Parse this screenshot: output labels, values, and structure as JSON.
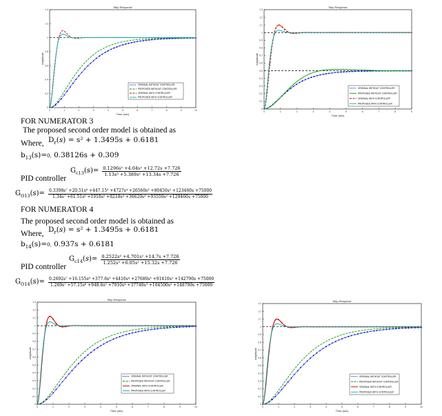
{
  "text": {
    "heading3": "FOR NUMERATOR 3",
    "proposed3": "The proposed second order model is obtained as",
    "where3": "Where,",
    "dr3_lhs": "D",
    "dr3_rhs": "s² + 1.3495s + 0.6181",
    "b13_lhs": "b",
    "b13_rhs": "0.38126s + 0.309",
    "pid3_label": "PID controller",
    "gc13_num": "0.1296s³ +4.04s² +12.72s +7.726",
    "gc13_den": "1.13s³ +5.389s² +13.34s +7.726",
    "go13_num": "0.3398s⁷ +20.51s⁶ +447.15⁵ +4727s⁴ +26560s³ +80450s² +123460s +75000",
    "go13_den": "1.34s⁷ +61.51s⁶ +1018s⁵ +8218s⁴ +36620s³ +93550s² +129460s +75000",
    "heading4": "FOR NUMERATOR 4",
    "proposed4": "The proposed second order model is obtained as",
    "where4": "Where,",
    "dr4_rhs": "s² + 1.3495s + 0.6181",
    "b14_rhs": "0.937s + 0.6181",
    "pid4_label": "PID controller",
    "gc14_num": "0.2522s³ +4.701s² +14.7s +7.726",
    "gc14_den": "1.252s³ +6.05s² +15.32s +7.726",
    "go14_num": "0.2692s⁷ +16.155s⁶ +377.6s⁵ +4416s⁴ +27680s³ +91410s² +142790s +75000",
    "go14_den": "1.269s⁷ +57.15s⁶ +948.6s⁵ +7910s⁴ +37740s³ +104500s² +148790s +75000"
  },
  "colors": {
    "blue": "#0000cc",
    "red": "#cc0000",
    "green": "#009900",
    "cyan": "#00aaaa",
    "black": "#000000"
  },
  "chart_data": [
    {
      "type": "line",
      "title": "Step Response",
      "xlabel": "Time (sec)",
      "ylabel": "Amplitude",
      "xlim": [
        0,
        10
      ],
      "ylim": [
        0,
        1.4
      ],
      "grid": false,
      "legend": "bottom-right",
      "series": [
        {
          "name": "ORIGINAL WITHOUT CONTROLLER",
          "color": "#0000cc",
          "style": "dotted-marker",
          "model": "overdamped",
          "final": 1.0,
          "tau": 1.3
        },
        {
          "name": "PROPOSED WITHOUT CONTROLLER",
          "color": "#009900",
          "style": "dashed",
          "model": "overdamped",
          "final": 1.0,
          "tau": 1.1
        },
        {
          "name": "ORIGINAL WITH CONTROLLER",
          "color": "#cc0000",
          "style": "dashed",
          "model": "underdamped",
          "final": 1.0,
          "overshoot": 0.1,
          "tpeak": 0.9
        },
        {
          "name": "PROPOSED WITH CONTROLLER",
          "color": "#00aaaa",
          "style": "solid",
          "model": "underdamped",
          "final": 1.0,
          "overshoot": 0.05,
          "tpeak": 0.9
        }
      ]
    },
    {
      "type": "line",
      "title": "Step Response",
      "xlabel": "Time (sec)",
      "ylabel": "Amplitude",
      "xlim": [
        0,
        9
      ],
      "ylim": [
        0,
        1.3
      ],
      "grid": false,
      "legend": "bottom-right",
      "series": [
        {
          "name": "ORIGINAL WITHOUT CONTROLLER",
          "color": "#0000cc",
          "style": "dotted-marker",
          "model": "overdamped",
          "final": 0.5,
          "tau": 0.9
        },
        {
          "name": "PROPOSED WITHOUT CONTROLLER",
          "color": "#009900",
          "style": "solid",
          "model": "underdamped",
          "final": 0.5,
          "overshoot": 0.04,
          "tpeak": 4.5
        },
        {
          "name": "ORIGINAL WITH CONTROLLER",
          "color": "#cc0000",
          "style": "dashed-marker",
          "model": "underdamped",
          "final": 1.0,
          "overshoot": 0.1,
          "tpeak": 0.9
        },
        {
          "name": "PROPOSED WITH CONTROLLER",
          "color": "#00aaaa",
          "style": "solid",
          "model": "underdamped",
          "final": 1.0,
          "overshoot": 0.03,
          "tpeak": 0.9
        }
      ]
    },
    {
      "type": "line",
      "title": "Step Response",
      "xlabel": "Time (sec)",
      "ylabel": "Amplitude",
      "xlim": [
        0,
        10
      ],
      "ylim": [
        0,
        1.3
      ],
      "grid": false,
      "legend": "bottom-right",
      "series": [
        {
          "name": "ORIGINAL WITHOUT CONTROLLER",
          "color": "#0000cc",
          "style": "dotted-marker",
          "model": "overdamped",
          "final": 1.0,
          "tau": 1.5
        },
        {
          "name": "PROPOSED WITHOUT CONTROLLER",
          "color": "#009900",
          "style": "dashed",
          "model": "overdamped",
          "final": 1.0,
          "tau": 1.3
        },
        {
          "name": "ORIGINAL WITH CONTROLLER",
          "color": "#cc0000",
          "style": "solid-marker",
          "model": "underdamped",
          "final": 1.0,
          "overshoot": 0.12,
          "tpeak": 0.8
        },
        {
          "name": "PROPOSED WITH CONTROLLER",
          "color": "#00aaaa",
          "style": "solid",
          "model": "underdamped",
          "final": 1.0,
          "overshoot": 0.05,
          "tpeak": 0.8
        }
      ]
    },
    {
      "type": "line",
      "title": "Step Response",
      "xlabel": "Time (sec)",
      "ylabel": "Amplitude",
      "xlim": [
        0,
        10
      ],
      "ylim": [
        0,
        1.3
      ],
      "grid": false,
      "legend": "bottom-right",
      "series": [
        {
          "name": "ORIGINAL WITHOUT CONTROLLER",
          "color": "#0000cc",
          "style": "dotted-marker",
          "model": "overdamped",
          "final": 1.0,
          "tau": 1.5
        },
        {
          "name": "PROPOSED WITHOUT CONTROLLER",
          "color": "#009900",
          "style": "dashed",
          "model": "overdamped",
          "final": 1.0,
          "tau": 1.3
        },
        {
          "name": "ORIGINAL WITH CONTROLLER",
          "color": "#cc0000",
          "style": "solid-marker",
          "model": "underdamped",
          "final": 1.0,
          "overshoot": 0.1,
          "tpeak": 0.9
        },
        {
          "name": "PROPOSED WITH CONTROLLER",
          "color": "#00aaaa",
          "style": "solid",
          "model": "underdamped",
          "final": 1.0,
          "overshoot": 0.04,
          "tpeak": 0.9
        }
      ]
    }
  ]
}
